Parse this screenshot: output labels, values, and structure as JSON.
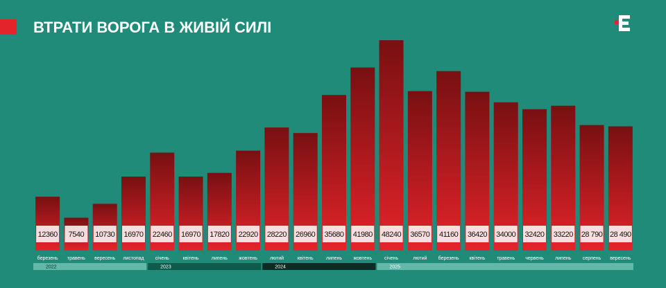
{
  "chart_data": {
    "type": "bar",
    "title": "ВТРАТИ ВОРОГА В ЖИВІЙ СИЛІ",
    "ylim": [
      0,
      50000
    ],
    "groups": [
      {
        "name": "2022",
        "color": "#62b9a9",
        "categories": [
          "березень",
          "травень",
          "вересень",
          "листопад"
        ],
        "values": [
          12360,
          7540,
          10730,
          16970
        ],
        "value_labels": [
          "12360",
          "7540",
          "10730",
          "16970"
        ]
      },
      {
        "name": "2023",
        "color": "#0f5b4b",
        "categories": [
          "січень",
          "квітень",
          "липень",
          "жовтень"
        ],
        "values": [
          22460,
          16970,
          17820,
          22920
        ],
        "value_labels": [
          "22460",
          "16970",
          "17820",
          "22920"
        ]
      },
      {
        "name": "2024",
        "color": "#0b2b25",
        "categories": [
          "лютий",
          "квітень",
          "липень",
          "жовтень"
        ],
        "values": [
          28220,
          26960,
          35680,
          41980
        ],
        "value_labels": [
          "28220",
          "26960",
          "35680",
          "41980"
        ]
      },
      {
        "name": "2025",
        "color": "#62b9a9",
        "categories": [
          "січень",
          "лютий",
          "березень",
          "квітень",
          "травень",
          "червень",
          "липень",
          "серпень",
          "вересень"
        ],
        "values": [
          48240,
          36570,
          41160,
          36420,
          34000,
          32420,
          33220,
          28790,
          28490
        ],
        "value_labels": [
          "48240",
          "36570",
          "41160",
          "36420",
          "34000",
          "32420",
          "33220",
          "28 790",
          "28 490"
        ]
      }
    ]
  }
}
